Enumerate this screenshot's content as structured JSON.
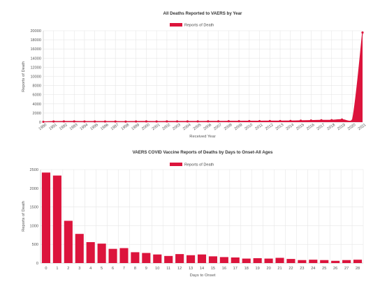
{
  "accent_color": "#dc143c",
  "chart_data": [
    {
      "type": "area",
      "title": "All Deaths Reported to VAERS by Year",
      "legend": {
        "label": "Reports of Death",
        "placement": "top-center"
      },
      "xlabel": "Received Year",
      "ylabel": "Reports of Death",
      "ylim": [
        0,
        20000
      ],
      "yticks": [
        0,
        2000,
        4000,
        6000,
        8000,
        10000,
        12000,
        14000,
        16000,
        18000,
        20000
      ],
      "grid": true,
      "categories": [
        "1990",
        "1991",
        "1992",
        "1993",
        "1994",
        "1995",
        "1996",
        "1997",
        "1998",
        "1999",
        "2000",
        "2001",
        "2002",
        "2003",
        "2004",
        "2005",
        "2006",
        "2007",
        "2008",
        "2009",
        "2010",
        "2011",
        "2012",
        "2013",
        "2014",
        "2015",
        "2016",
        "2017",
        "2018",
        "2019",
        "2020",
        "2021"
      ],
      "series": [
        {
          "name": "Reports of Death",
          "values": [
            70,
            130,
            160,
            150,
            140,
            130,
            140,
            130,
            120,
            140,
            150,
            140,
            150,
            160,
            150,
            160,
            170,
            180,
            190,
            200,
            210,
            220,
            230,
            240,
            260,
            300,
            350,
            400,
            420,
            550,
            300,
            19600
          ]
        }
      ]
    },
    {
      "type": "bar",
      "title": "VAERS COVID Vaccine Reports of Deaths by Days to Onset-All Ages",
      "legend": {
        "label": "Reports of Death",
        "placement": "top-center"
      },
      "xlabel": "Days to Onset",
      "ylabel": "Reports of Death",
      "ylim": [
        0,
        2500
      ],
      "yticks": [
        0,
        500,
        1000,
        1500,
        2000,
        2500
      ],
      "grid": true,
      "categories": [
        "0",
        "1",
        "2",
        "3",
        "4",
        "5",
        "6",
        "7",
        "8",
        "9",
        "10",
        "11",
        "12",
        "13",
        "14",
        "15",
        "16",
        "17",
        "18",
        "19",
        "20",
        "21",
        "22",
        "23",
        "24",
        "25",
        "26",
        "27",
        "28"
      ],
      "series": [
        {
          "name": "Reports of Death",
          "values": [
            2420,
            2340,
            1130,
            780,
            560,
            520,
            380,
            400,
            290,
            270,
            230,
            190,
            240,
            210,
            230,
            180,
            160,
            150,
            120,
            130,
            120,
            140,
            110,
            80,
            90,
            80,
            60,
            80,
            90
          ]
        }
      ]
    }
  ]
}
